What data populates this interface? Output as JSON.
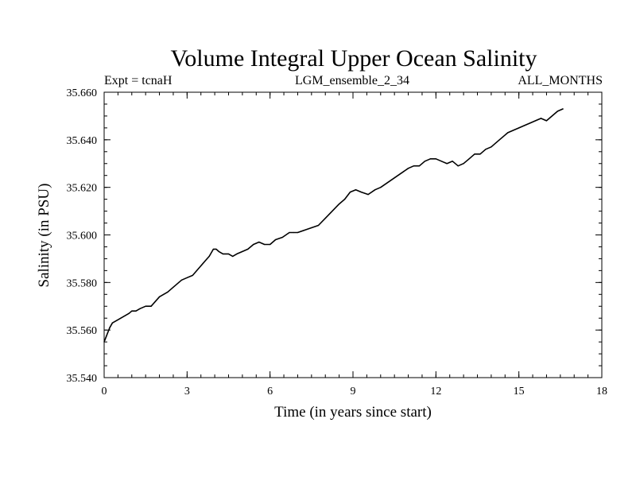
{
  "header": {
    "title": "Volume Integral Upper Ocean Salinity",
    "left": "Expt = tcnaH",
    "center": "LGM_ensemble_2_34",
    "right": "ALL_MONTHS"
  },
  "colors": {
    "line": "#000000",
    "background": "#ffffff"
  },
  "chart_data": {
    "type": "line",
    "title": "Volume Integral Upper Ocean Salinity",
    "xlabel": "Time (in years since start)",
    "ylabel": "Salinity (in PSU)",
    "xlim": [
      0,
      18
    ],
    "ylim": [
      35.54,
      35.66
    ],
    "xticks": [
      0,
      3,
      6,
      9,
      12,
      15,
      18
    ],
    "xtick_labels": [
      "0",
      "3",
      "6",
      "9",
      "12",
      "15",
      "18"
    ],
    "yticks": [
      35.54,
      35.56,
      35.58,
      35.6,
      35.62,
      35.64,
      35.66
    ],
    "ytick_labels": [
      "35.540",
      "35.560",
      "35.580",
      "35.600",
      "35.620",
      "35.640",
      "35.660"
    ],
    "series": [
      {
        "name": "Salinity",
        "x": [
          0.0,
          0.1,
          0.2,
          0.3,
          0.45,
          0.6,
          0.75,
          0.9,
          1.0,
          1.15,
          1.3,
          1.5,
          1.7,
          1.85,
          2.0,
          2.15,
          2.3,
          2.5,
          2.7,
          2.8,
          3.0,
          3.2,
          3.35,
          3.5,
          3.65,
          3.8,
          3.95,
          4.05,
          4.15,
          4.3,
          4.5,
          4.65,
          4.8,
          5.0,
          5.2,
          5.4,
          5.6,
          5.8,
          6.0,
          6.2,
          6.45,
          6.7,
          6.85,
          7.0,
          7.25,
          7.5,
          7.75,
          8.0,
          8.25,
          8.5,
          8.7,
          8.9,
          9.1,
          9.3,
          9.55,
          9.8,
          10.0,
          10.25,
          10.5,
          10.75,
          11.0,
          11.2,
          11.4,
          11.6,
          11.8,
          12.0,
          12.2,
          12.4,
          12.6,
          12.8,
          13.0,
          13.2,
          13.4,
          13.6,
          13.8,
          14.0,
          14.2,
          14.4,
          14.6,
          14.8,
          15.0,
          15.2,
          15.4,
          15.6,
          15.8,
          16.0,
          16.2,
          16.4,
          16.6
        ],
        "y": [
          35.555,
          35.558,
          35.561,
          35.563,
          35.564,
          35.565,
          35.566,
          35.567,
          35.568,
          35.568,
          35.569,
          35.57,
          35.57,
          35.572,
          35.574,
          35.575,
          35.576,
          35.578,
          35.58,
          35.581,
          35.582,
          35.583,
          35.585,
          35.587,
          35.589,
          35.591,
          35.594,
          35.594,
          35.593,
          35.592,
          35.592,
          35.591,
          35.592,
          35.593,
          35.594,
          35.596,
          35.597,
          35.596,
          35.596,
          35.598,
          35.599,
          35.601,
          35.601,
          35.601,
          35.602,
          35.603,
          35.604,
          35.607,
          35.61,
          35.613,
          35.615,
          35.618,
          35.619,
          35.618,
          35.617,
          35.619,
          35.62,
          35.622,
          35.624,
          35.626,
          35.628,
          35.629,
          35.629,
          35.631,
          35.632,
          35.632,
          35.631,
          35.63,
          35.631,
          35.629,
          35.63,
          35.632,
          35.634,
          35.634,
          35.636,
          35.637,
          35.639,
          35.641,
          35.643,
          35.644,
          35.645,
          35.646,
          35.647,
          35.648,
          35.649,
          35.648,
          35.65,
          35.652,
          35.653
        ]
      }
    ]
  }
}
